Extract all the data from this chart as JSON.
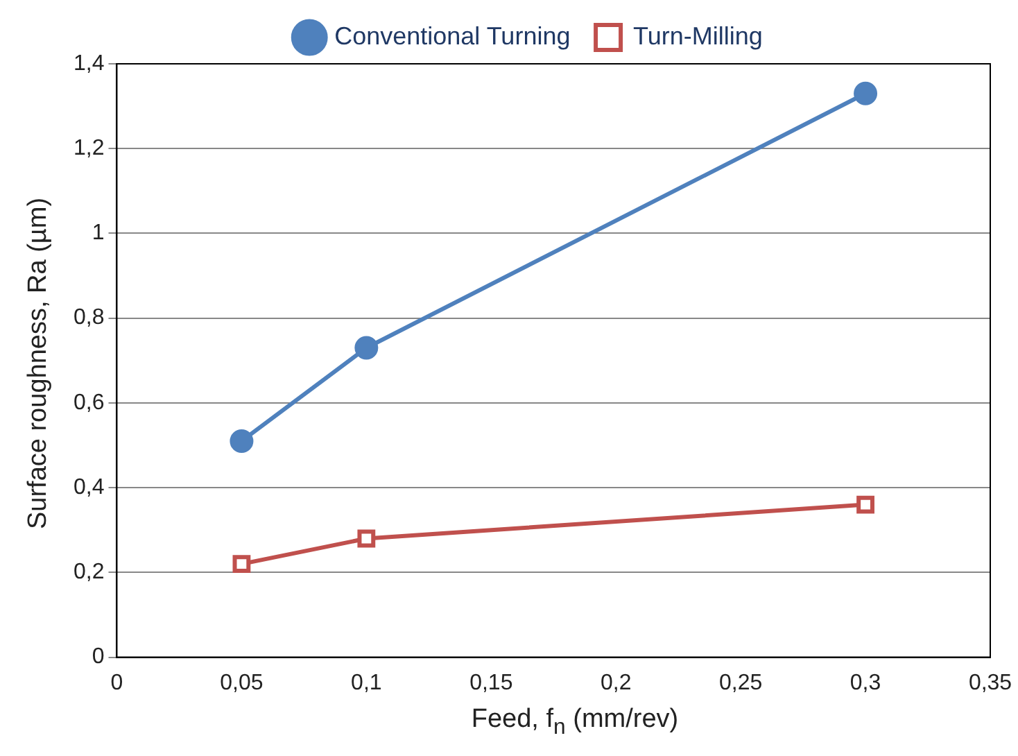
{
  "chart_data": {
    "type": "line",
    "xlabel": "Feed, f$_{n}$ (mm/rev)",
    "ylabel": "Surface roughness, Ra (µm)",
    "x": [
      0.05,
      0.1,
      0.3
    ],
    "series": [
      {
        "name": "Conventional Turning",
        "color": "#4f81bd",
        "values": [
          0.51,
          0.73,
          1.33
        ],
        "marker": "circle"
      },
      {
        "name": "Turn-Milling",
        "color": "#c0504d",
        "values": [
          0.22,
          0.28,
          0.36
        ],
        "marker": "square"
      }
    ],
    "xlim": [
      0,
      0.35
    ],
    "xticks": [
      0,
      {
        "value": 0.05,
        "label": "0,05"
      },
      {
        "value": 0.1,
        "label": "0,1"
      },
      {
        "value": 0.15,
        "label": "0,15"
      },
      {
        "value": 0.2,
        "label": "0,2"
      },
      {
        "value": 0.25,
        "label": "0,25"
      },
      {
        "value": 0.3,
        "label": "0,3"
      },
      {
        "value": 0.35,
        "label": "0,35"
      }
    ],
    "ylim": [
      0,
      1.4
    ],
    "yticks": [
      0,
      {
        "value": 0.2,
        "label": "0,2"
      },
      {
        "value": 0.4,
        "label": "0,4"
      },
      {
        "value": 0.6,
        "label": "0,6"
      },
      {
        "value": 0.8,
        "label": "0,8"
      },
      1,
      {
        "value": 1.2,
        "label": "1,2"
      },
      {
        "value": 1.4,
        "label": "1,4"
      }
    ],
    "grid": "y",
    "legend": "top",
    "line_style": "solid"
  }
}
